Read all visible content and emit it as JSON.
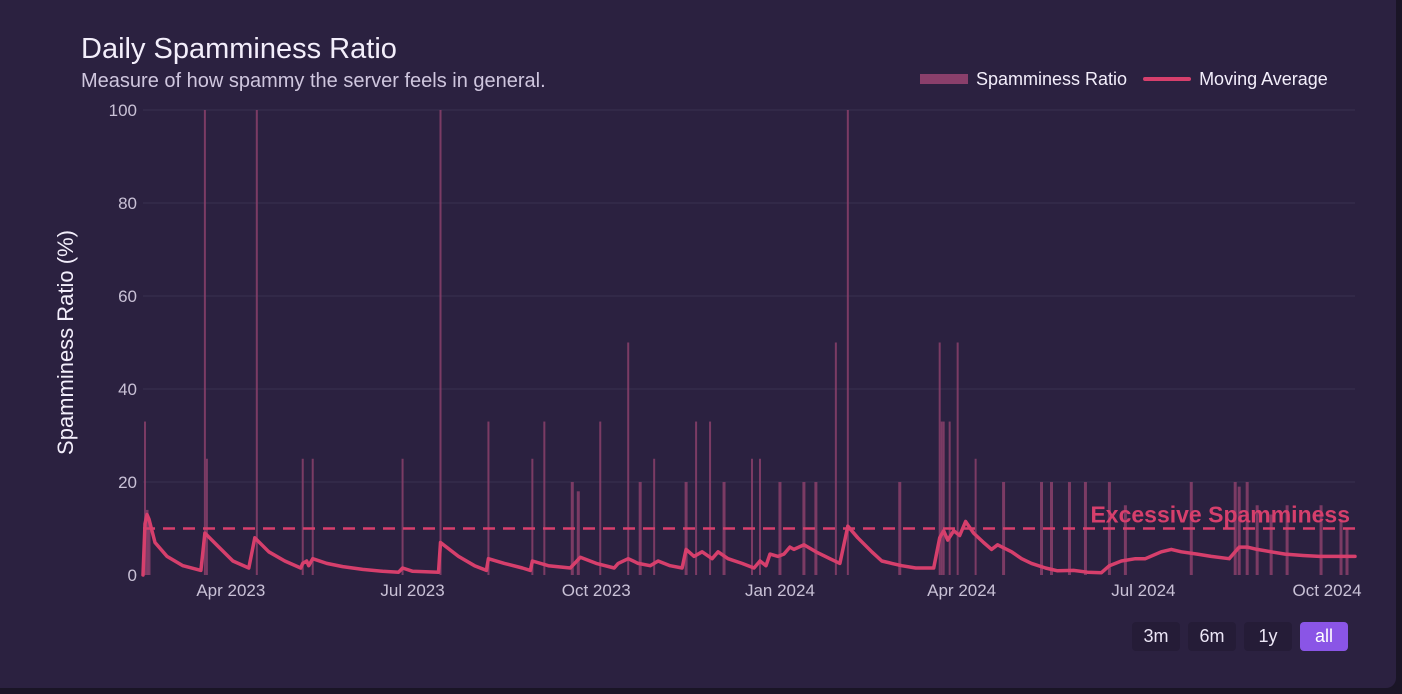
{
  "header": {
    "title": "Daily Spamminess Ratio",
    "subtitle": "Measure of how spammy the server feels in general."
  },
  "legend": {
    "bars_label": "Spamminess Ratio",
    "line_label": "Moving Average"
  },
  "range_buttons": [
    {
      "label": "3m",
      "active": false
    },
    {
      "label": "6m",
      "active": false
    },
    {
      "label": "1y",
      "active": false
    },
    {
      "label": "all",
      "active": true
    }
  ],
  "colors": {
    "bar": "#8a3f6b",
    "line": "#d63f6c",
    "threshold": "#d63f6c",
    "grid": "#3a3150",
    "tick": "#c9c1d6",
    "ylabel": "#f3eefb"
  },
  "chart_data": {
    "type": "bar",
    "title": "Daily Spamminess Ratio",
    "subtitle": "Measure of how spammy the server feels in general.",
    "xlabel": "",
    "ylabel": "Spamminess Ratio (%)",
    "x_range_days": [
      0,
      607
    ],
    "ylim": [
      0,
      100
    ],
    "yticks": [
      0,
      20,
      40,
      60,
      80,
      100
    ],
    "xticks": [
      {
        "label": "Apr 2023",
        "day": 44
      },
      {
        "label": "Jul 2023",
        "day": 135
      },
      {
        "label": "Oct 2023",
        "day": 227
      },
      {
        "label": "Jan 2024",
        "day": 319
      },
      {
        "label": "Apr 2024",
        "day": 410
      },
      {
        "label": "Jul 2024",
        "day": 501
      },
      {
        "label": "Oct 2024",
        "day": 593
      }
    ],
    "grid": true,
    "legend_position": "top-right",
    "threshold": {
      "value": 10,
      "label": "Excessive Spamminess"
    },
    "series": [
      {
        "name": "Spamminess Ratio",
        "kind": "bar",
        "points": [
          [
            1,
            33
          ],
          [
            2,
            14
          ],
          [
            3,
            12
          ],
          [
            31,
            100
          ],
          [
            32,
            25
          ],
          [
            57,
            100
          ],
          [
            80,
            25
          ],
          [
            85,
            25
          ],
          [
            130,
            25
          ],
          [
            149,
            100
          ],
          [
            173,
            33
          ],
          [
            195,
            25
          ],
          [
            201,
            33
          ],
          [
            215,
            20
          ],
          [
            218,
            18
          ],
          [
            229,
            33
          ],
          [
            243,
            50
          ],
          [
            249,
            20
          ],
          [
            256,
            25
          ],
          [
            272,
            20
          ],
          [
            277,
            33
          ],
          [
            284,
            33
          ],
          [
            291,
            20
          ],
          [
            305,
            25
          ],
          [
            309,
            25
          ],
          [
            319,
            20
          ],
          [
            331,
            20
          ],
          [
            337,
            20
          ],
          [
            347,
            50
          ],
          [
            353,
            100
          ],
          [
            379,
            20
          ],
          [
            399,
            50
          ],
          [
            400,
            33
          ],
          [
            401,
            33
          ],
          [
            408,
            50
          ],
          [
            404,
            33
          ],
          [
            417,
            25
          ],
          [
            431,
            20
          ],
          [
            450,
            20
          ],
          [
            455,
            20
          ],
          [
            464,
            20
          ],
          [
            472,
            20
          ],
          [
            484,
            20
          ],
          [
            492,
            15
          ],
          [
            525,
            20
          ],
          [
            547,
            20
          ],
          [
            549,
            19
          ],
          [
            553,
            20
          ],
          [
            558,
            15
          ],
          [
            565,
            13
          ],
          [
            573,
            15
          ],
          [
            590,
            15
          ],
          [
            600,
            12
          ],
          [
            603,
            10
          ]
        ]
      },
      {
        "name": "Moving Average",
        "kind": "line",
        "points": [
          [
            0,
            0
          ],
          [
            1,
            11
          ],
          [
            2,
            13
          ],
          [
            3,
            12
          ],
          [
            6,
            7
          ],
          [
            12,
            4
          ],
          [
            20,
            2
          ],
          [
            29,
            1
          ],
          [
            31,
            9
          ],
          [
            38,
            6
          ],
          [
            45,
            3
          ],
          [
            53,
            1.5
          ],
          [
            56,
            8
          ],
          [
            63,
            5
          ],
          [
            71,
            3
          ],
          [
            79,
            1.5
          ],
          [
            80,
            2.5
          ],
          [
            82,
            3
          ],
          [
            83,
            2
          ],
          [
            85,
            3.5
          ],
          [
            92,
            2.5
          ],
          [
            100,
            1.8
          ],
          [
            110,
            1.2
          ],
          [
            120,
            0.8
          ],
          [
            128,
            0.6
          ],
          [
            130,
            1.5
          ],
          [
            135,
            0.8
          ],
          [
            148,
            0.6
          ],
          [
            149,
            7
          ],
          [
            158,
            4
          ],
          [
            166,
            2
          ],
          [
            172,
            1
          ],
          [
            173,
            3.5
          ],
          [
            181,
            2.5
          ],
          [
            190,
            1.5
          ],
          [
            194,
            1
          ],
          [
            195,
            3
          ],
          [
            203,
            2
          ],
          [
            214,
            1.5
          ],
          [
            219,
            3.8
          ],
          [
            227,
            2.5
          ],
          [
            236,
            1.5
          ],
          [
            238,
            2.5
          ],
          [
            243,
            3.5
          ],
          [
            248,
            2.5
          ],
          [
            254,
            2
          ],
          [
            258,
            3
          ],
          [
            264,
            2
          ],
          [
            270,
            1.5
          ],
          [
            272,
            5.5
          ],
          [
            276,
            4
          ],
          [
            280,
            5
          ],
          [
            285,
            3.5
          ],
          [
            288,
            5
          ],
          [
            293,
            3.5
          ],
          [
            300,
            2.5
          ],
          [
            306,
            1.5
          ],
          [
            309,
            3
          ],
          [
            312,
            2
          ],
          [
            314,
            4.5
          ],
          [
            318,
            4
          ],
          [
            321,
            4.5
          ],
          [
            324,
            6
          ],
          [
            326,
            5.5
          ],
          [
            331,
            6.5
          ],
          [
            337,
            5
          ],
          [
            344,
            3.5
          ],
          [
            349,
            2.5
          ],
          [
            353,
            10.5
          ],
          [
            358,
            8
          ],
          [
            365,
            5
          ],
          [
            370,
            3
          ],
          [
            375,
            2.5
          ],
          [
            380,
            2
          ],
          [
            387,
            1.5
          ],
          [
            396,
            1.5
          ],
          [
            399,
            8
          ],
          [
            401,
            9.5
          ],
          [
            403,
            7.5
          ],
          [
            406,
            9.5
          ],
          [
            409,
            8.5
          ],
          [
            412,
            11.5
          ],
          [
            416,
            9
          ],
          [
            421,
            7
          ],
          [
            425,
            5.5
          ],
          [
            428,
            6.5
          ],
          [
            435,
            5
          ],
          [
            440,
            3.5
          ],
          [
            445,
            2.5
          ],
          [
            452,
            1.5
          ],
          [
            458,
            0.9
          ],
          [
            466,
            1
          ],
          [
            473,
            0.6
          ],
          [
            480,
            0.5
          ],
          [
            484,
            2
          ],
          [
            490,
            3
          ],
          [
            497,
            3.5
          ],
          [
            502,
            3.5
          ],
          [
            510,
            5
          ],
          [
            515,
            5.5
          ],
          [
            520,
            5
          ],
          [
            528,
            4.5
          ],
          [
            535,
            4
          ],
          [
            544,
            3.5
          ],
          [
            549,
            6
          ],
          [
            553,
            6
          ],
          [
            558,
            5.5
          ],
          [
            565,
            5
          ],
          [
            572,
            4.5
          ],
          [
            581,
            4.2
          ],
          [
            589,
            4
          ],
          [
            598,
            4
          ],
          [
            607,
            4
          ]
        ]
      }
    ]
  }
}
